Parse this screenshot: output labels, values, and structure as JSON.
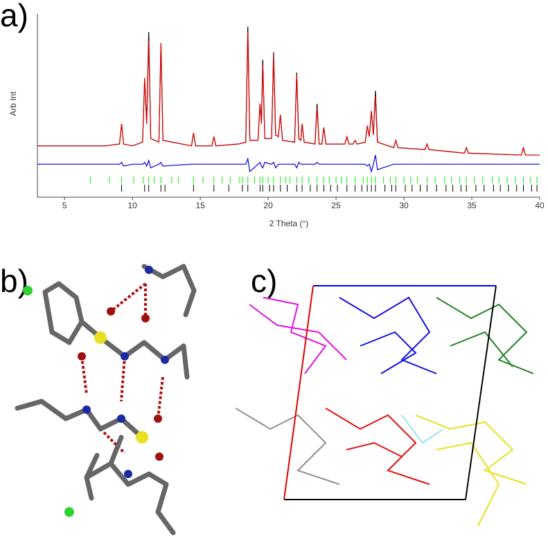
{
  "panels": {
    "a": "a)",
    "b": "b)",
    "c": "c)"
  },
  "chart_data": {
    "type": "line",
    "ylabel": "Arb Int",
    "xlabel": "2 Theta (°)",
    "xlim": [
      3,
      40
    ],
    "xticks": [
      5,
      10,
      15,
      20,
      25,
      30,
      35,
      40
    ],
    "ylim": [
      0,
      100
    ],
    "grid": false,
    "x": [
      3,
      5,
      8,
      9.05,
      9.2,
      9.35,
      10.0,
      10.75,
      10.9,
      11.05,
      11.2,
      11.35,
      11.95,
      12.1,
      12.25,
      14.35,
      14.5,
      14.65,
      15.85,
      16.0,
      16.15,
      17.8,
      18.35,
      18.5,
      18.65,
      19.25,
      19.4,
      19.5,
      19.6,
      19.75,
      20.25,
      20.4,
      20.55,
      20.75,
      20.9,
      21.05,
      21.95,
      22.1,
      22.25,
      22.4,
      22.5,
      22.65,
      23.45,
      23.6,
      23.75,
      23.95,
      24.1,
      24.25,
      25.65,
      25.8,
      25.95,
      26.25,
      26.4,
      26.55,
      27.15,
      27.3,
      27.45,
      27.6,
      27.75,
      27.9,
      28.05,
      29.25,
      29.4,
      29.55,
      31.55,
      31.7,
      31.85,
      34.45,
      34.6,
      34.75,
      38.65,
      38.8,
      38.95,
      40
    ],
    "series": [
      {
        "color": "#000000",
        "values": [
          28,
          28,
          28,
          29,
          40,
          29,
          28,
          30,
          65,
          40,
          90,
          32,
          30,
          84,
          31,
          28,
          35,
          28,
          28,
          33,
          28,
          29,
          30,
          93,
          31,
          31,
          51,
          40,
          75,
          32,
          32,
          79,
          34,
          33,
          45,
          31,
          30,
          68,
          32,
          31,
          40,
          30,
          29,
          51,
          29,
          29,
          38,
          29,
          29,
          33,
          29,
          29,
          31,
          29,
          30,
          39,
          33,
          47,
          34,
          58,
          30,
          27,
          31,
          27,
          26,
          29,
          26,
          24,
          27,
          24,
          23,
          27,
          23,
          23
        ]
      },
      {
        "color": "#e00000",
        "values": [
          28,
          28,
          28,
          29,
          40,
          29,
          28,
          30,
          65,
          40,
          85,
          32,
          30,
          84,
          31,
          28,
          35,
          28,
          28,
          33,
          28,
          29,
          30,
          90,
          31,
          31,
          51,
          40,
          72,
          32,
          32,
          77,
          34,
          33,
          45,
          31,
          30,
          67,
          32,
          31,
          40,
          30,
          29,
          49,
          29,
          29,
          38,
          29,
          29,
          33,
          29,
          29,
          31,
          29,
          30,
          39,
          33,
          47,
          34,
          55,
          30,
          27,
          31,
          27,
          26,
          29,
          26,
          24,
          27,
          24,
          23,
          27,
          23,
          23
        ]
      },
      {
        "color": "#0000e0",
        "values": [
          18,
          18,
          18,
          18,
          19,
          17,
          18,
          18,
          19,
          17,
          20,
          16,
          18,
          19,
          17,
          18,
          18,
          18,
          18,
          18,
          18,
          18,
          18,
          21,
          14,
          18,
          19,
          17,
          16,
          19,
          18,
          19,
          16,
          18,
          18,
          18,
          18,
          16,
          19,
          18,
          18,
          18,
          18,
          19,
          18,
          18,
          18,
          18,
          18,
          18,
          18,
          18,
          18,
          18,
          18,
          17,
          18,
          14,
          18,
          23,
          15,
          18,
          18,
          18,
          18,
          18,
          18,
          18,
          18,
          18,
          18,
          18,
          18,
          18
        ]
      }
    ],
    "reflection_markers": [
      {
        "color": "#00ee00",
        "x": [
          6.9,
          8.3,
          9.2,
          10.1,
          10.8,
          11.2,
          11.6,
          12.1,
          12.9,
          13.4,
          14.5,
          15.2,
          16.0,
          16.6,
          17.2,
          17.9,
          18.1,
          18.5,
          19.0,
          19.4,
          19.6,
          20.0,
          20.4,
          20.9,
          21.3,
          21.6,
          22.1,
          22.5,
          23.0,
          23.6,
          24.1,
          24.5,
          25.0,
          25.4,
          25.8,
          26.4,
          27.0,
          27.3,
          27.6,
          27.9,
          28.5,
          29.0,
          29.4,
          30.0,
          30.5,
          31.0,
          31.7,
          32.3,
          33.0,
          33.5,
          34.1,
          34.6,
          35.2,
          35.8,
          36.5,
          37.0,
          37.6,
          38.2,
          38.8,
          39.3,
          39.8
        ]
      },
      {
        "color": "#000000",
        "x": [
          9.2,
          10.9,
          11.2,
          12.1,
          12.4,
          14.5,
          16.0,
          17.1,
          18.1,
          18.5,
          19.4,
          19.6,
          20.1,
          20.4,
          20.9,
          21.4,
          22.1,
          22.5,
          23.1,
          23.6,
          24.1,
          24.6,
          25.1,
          25.8,
          26.4,
          26.9,
          27.3,
          27.6,
          27.9,
          28.6,
          29.1,
          29.4,
          30.1,
          30.6,
          31.2,
          31.7,
          32.4,
          33.1,
          33.6,
          34.2,
          34.6,
          35.3,
          35.9,
          36.6,
          37.1,
          37.7,
          38.3,
          38.8,
          39.4,
          39.8
        ]
      }
    ]
  }
}
